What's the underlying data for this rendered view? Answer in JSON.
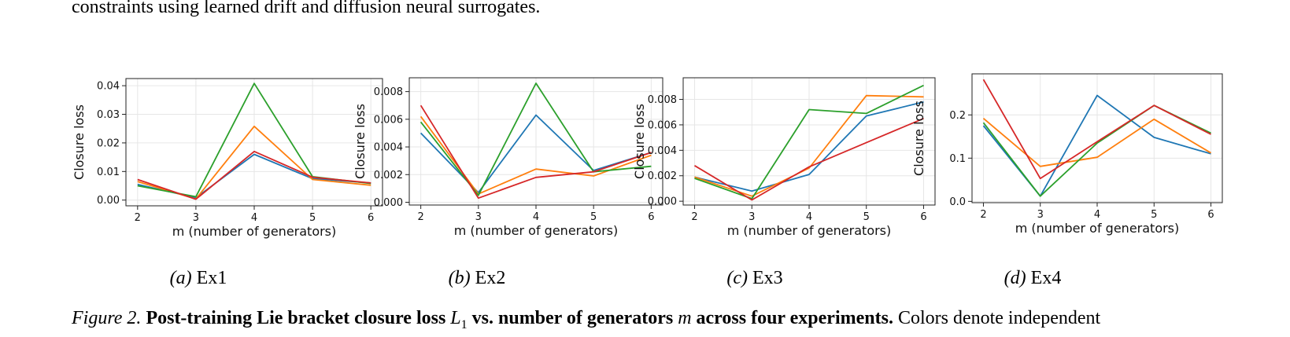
{
  "body_text": "constraints using learned drift and diffusion neural surrogates.",
  "colors": {
    "blue": "#1f77b4",
    "orange": "#ff7f0e",
    "green": "#2ca02c",
    "red": "#d62728"
  },
  "chart_data": [
    {
      "type": "line",
      "subcaption_letter": "(a)",
      "subcaption_name": "Ex1",
      "xlabel": "m (number of generators)",
      "ylabel": "Closure loss",
      "x": [
        2,
        3,
        4,
        5,
        6
      ],
      "xticks": [
        "2",
        "3",
        "4",
        "5",
        "6"
      ],
      "yticks": [
        0,
        0.01,
        0.02,
        0.03,
        0.04
      ],
      "ytick_labels": [
        "0.00",
        "0.01",
        "0.02",
        "0.03",
        "0.04"
      ],
      "ylim": [
        -0.002,
        0.0425
      ],
      "grid": true,
      "series": [
        {
          "color": "#1f77b4",
          "values": [
            0.0055,
            0.0008,
            0.016,
            0.0075,
            0.006
          ]
        },
        {
          "color": "#ff7f0e",
          "values": [
            0.0065,
            0.0004,
            0.0258,
            0.0072,
            0.0052
          ]
        },
        {
          "color": "#2ca02c",
          "values": [
            0.005,
            0.0012,
            0.0408,
            0.0082,
            0.0058
          ]
        },
        {
          "color": "#d62728",
          "values": [
            0.0072,
            0.0003,
            0.017,
            0.008,
            0.006
          ]
        }
      ]
    },
    {
      "type": "line",
      "subcaption_letter": "(b)",
      "subcaption_name": "Ex2",
      "xlabel": "m (number of generators)",
      "ylabel": "Closure loss",
      "x": [
        2,
        3,
        4,
        5,
        6
      ],
      "xticks": [
        "2",
        "3",
        "4",
        "5",
        "6"
      ],
      "yticks": [
        0,
        0.002,
        0.004,
        0.006,
        0.008
      ],
      "ytick_labels": [
        "0.000",
        "0.002",
        "0.004",
        "0.006",
        "0.008"
      ],
      "ylim": [
        -0.0002,
        0.009
      ],
      "grid": true,
      "series": [
        {
          "color": "#1f77b4",
          "values": [
            0.005,
            0.0007,
            0.0063,
            0.0023,
            0.0036
          ]
        },
        {
          "color": "#ff7f0e",
          "values": [
            0.0062,
            0.0006,
            0.0024,
            0.0019,
            0.0034
          ]
        },
        {
          "color": "#2ca02c",
          "values": [
            0.0058,
            0.0005,
            0.0086,
            0.0022,
            0.0026
          ]
        },
        {
          "color": "#d62728",
          "values": [
            0.007,
            0.0003,
            0.0018,
            0.0022,
            0.0036
          ]
        }
      ]
    },
    {
      "type": "line",
      "subcaption_letter": "(c)",
      "subcaption_name": "Ex3",
      "xlabel": "m (number of generators)",
      "ylabel": "Closure loss",
      "x": [
        2,
        3,
        4,
        5,
        6
      ],
      "xticks": [
        "2",
        "3",
        "4",
        "5",
        "6"
      ],
      "yticks": [
        0,
        0.002,
        0.004,
        0.006,
        0.008
      ],
      "ytick_labels": [
        "0.000",
        "0.002",
        "0.004",
        "0.006",
        "0.008"
      ],
      "ylim": [
        -0.0003,
        0.0097
      ],
      "grid": true,
      "series": [
        {
          "color": "#1f77b4",
          "values": [
            0.0019,
            0.0008,
            0.0021,
            0.0067,
            0.0078
          ]
        },
        {
          "color": "#ff7f0e",
          "values": [
            0.0019,
            0.0004,
            0.0026,
            0.0083,
            0.0082
          ]
        },
        {
          "color": "#2ca02c",
          "values": [
            0.0018,
            0.0002,
            0.0072,
            0.0069,
            0.0091
          ]
        },
        {
          "color": "#d62728",
          "values": [
            0.0028,
            0.0001,
            0.0027,
            0.0046,
            0.0065
          ]
        }
      ]
    },
    {
      "type": "line",
      "subcaption_letter": "(d)",
      "subcaption_name": "Ex4",
      "xlabel": "m (number of generators)",
      "ylabel": "Closure loss",
      "x": [
        2,
        3,
        4,
        5,
        6
      ],
      "xticks": [
        "2",
        "3",
        "4",
        "5",
        "6"
      ],
      "yticks": [
        0,
        0.1,
        0.2
      ],
      "ytick_labels": [
        "0.0",
        "0.1",
        "0.2"
      ],
      "ylim": [
        -0.003,
        0.295
      ],
      "grid": true,
      "series": [
        {
          "color": "#1f77b4",
          "values": [
            0.175,
            0.012,
            0.245,
            0.148,
            0.11
          ]
        },
        {
          "color": "#ff7f0e",
          "values": [
            0.192,
            0.081,
            0.102,
            0.19,
            0.112
          ]
        },
        {
          "color": "#2ca02c",
          "values": [
            0.182,
            0.012,
            0.135,
            0.222,
            0.158
          ]
        },
        {
          "color": "#d62728",
          "values": [
            0.282,
            0.053,
            0.138,
            0.222,
            0.155
          ]
        }
      ]
    }
  ],
  "figure_caption": {
    "label": "Figure 2.",
    "bold_lead": "Post-training Lie bracket closure loss",
    "symbol": "L",
    "symbol_sub": "1",
    "bold_mid": "vs. number of generators",
    "symbol_m": "m",
    "bold_tail": "across four experiments.",
    "rest": "Colors denote independent"
  }
}
